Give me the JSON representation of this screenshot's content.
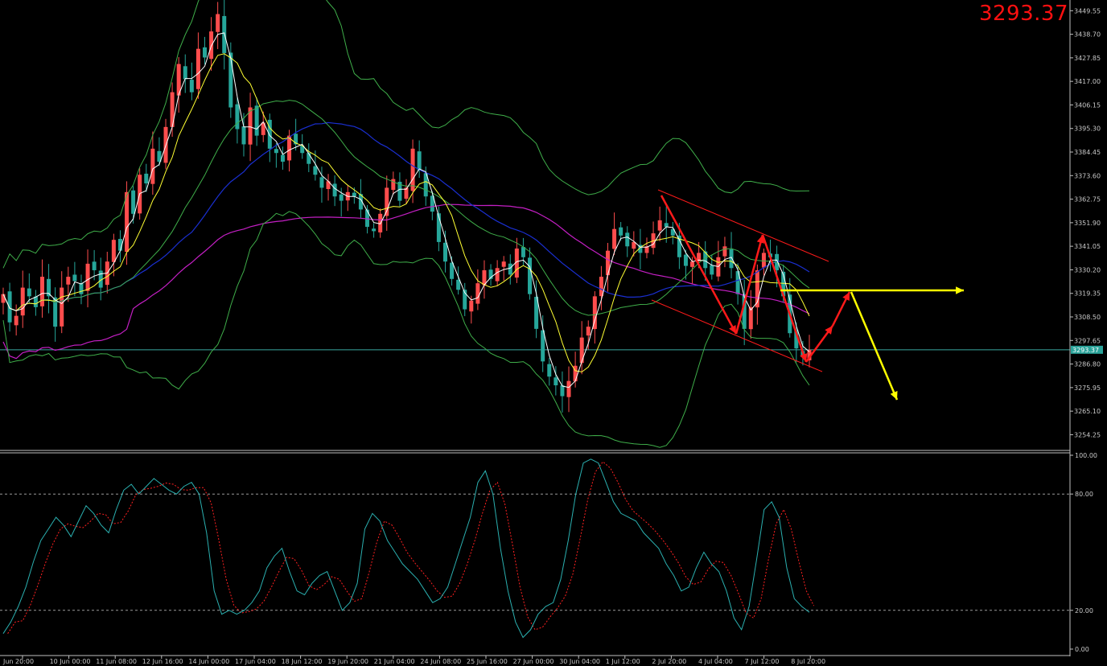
{
  "chart_data": {
    "type": "candlestick",
    "symbol_price": "3293.37",
    "colors": {
      "background": "#000000",
      "bull": "#ff4d4d",
      "bear": "#26a69a",
      "ma_fast": "#ffffff",
      "ma_slow": "#ffff33",
      "ma_blue": "#1a2fd1",
      "ma_magenta": "#c41fc4",
      "bands": "#3fae4a",
      "bands_outer": "#2a9a6a",
      "stoch_main": "#2bb0b0",
      "stoch_signal": "#ff2020",
      "annotation_red": "#ff1a1a",
      "annotation_yellow": "#ffff00"
    },
    "price_axis": {
      "ticks": [
        "3449.55",
        "3438.70",
        "3427.85",
        "3417.00",
        "3406.15",
        "3395.30",
        "3384.45",
        "3373.60",
        "3362.75",
        "3351.90",
        "3341.05",
        "3330.20",
        "3319.35",
        "3308.50",
        "3297.65",
        "3286.80",
        "3275.95",
        "3265.10",
        "3254.25"
      ],
      "min": 3247.0,
      "max": 3453.0,
      "current": 3293.37,
      "current_label": "3293.37"
    },
    "time_axis": {
      "labels": [
        "Jun 20:00",
        "10 Jun 00:00",
        "11 Jun 08:00",
        "12 Jun 16:00",
        "14 Jun 00:00",
        "17 Jun 04:00",
        "18 Jun 12:00",
        "19 Jun 20:00",
        "21 Jun 04:00",
        "24 Jun 08:00",
        "25 Jun 16:00",
        "27 Jun 00:00",
        "30 Jun 04:00",
        "1 Jul 12:00",
        "2 Jul 20:00",
        "4 Jul 04:00",
        "7 Jul 12:00",
        "8 Jul 20:00"
      ]
    },
    "oscillator_axis": {
      "ticks": [
        "100.00",
        "80.00",
        "20.00",
        "0.00"
      ],
      "levels": [
        80,
        20
      ]
    },
    "closes": [
      3319,
      3306,
      3309,
      3322,
      3318,
      3313,
      3327,
      3318,
      3304,
      3322,
      3327,
      3325,
      3319,
      3333,
      3330,
      3322,
      3334,
      3344,
      3339,
      3366,
      3356,
      3374,
      3370,
      3386,
      3380,
      3396,
      3412,
      3425,
      3418,
      3412,
      3432,
      3428,
      3440,
      3448,
      3430,
      3405,
      3395,
      3388,
      3405,
      3392,
      3398,
      3386,
      3384,
      3380,
      3392,
      3388,
      3384,
      3379,
      3374,
      3368,
      3371,
      3364,
      3362,
      3366,
      3364,
      3358,
      3350,
      3348,
      3356,
      3368,
      3372,
      3362,
      3368,
      3386,
      3376,
      3364,
      3357,
      3343,
      3334,
      3326,
      3321,
      3312,
      3316,
      3324,
      3330,
      3326,
      3331,
      3334,
      3328,
      3340,
      3336,
      3319,
      3303,
      3288,
      3281,
      3277,
      3272,
      3279,
      3286,
      3299,
      3304,
      3318,
      3327,
      3339,
      3349,
      3346,
      3341,
      3343,
      3338,
      3341,
      3347,
      3353,
      3350,
      3346,
      3336,
      3332,
      3334,
      3338,
      3331,
      3328,
      3336,
      3341,
      3331,
      3319,
      3303,
      3313,
      3330,
      3338,
      3336,
      3330,
      3318,
      3301,
      3294,
      3290,
      3293.37
    ],
    "oscillator": [
      8,
      14,
      22,
      32,
      45,
      56,
      62,
      68,
      64,
      58,
      66,
      74,
      70,
      64,
      60,
      72,
      82,
      85,
      80,
      84,
      88,
      85,
      82,
      80,
      84,
      86,
      80,
      60,
      30,
      18,
      20,
      18,
      20,
      24,
      30,
      42,
      48,
      52,
      40,
      30,
      28,
      34,
      38,
      40,
      30,
      20,
      24,
      34,
      62,
      70,
      66,
      56,
      50,
      44,
      40,
      36,
      30,
      24,
      26,
      32,
      44,
      56,
      68,
      86,
      92,
      80,
      52,
      30,
      14,
      6,
      10,
      18,
      22,
      24,
      36,
      56,
      80,
      96,
      98,
      96,
      86,
      76,
      70,
      68,
      66,
      60,
      56,
      52,
      44,
      38,
      30,
      32,
      42,
      50,
      44,
      40,
      30,
      16,
      10,
      22,
      46,
      72,
      76,
      68,
      42,
      26,
      22,
      19
    ]
  }
}
